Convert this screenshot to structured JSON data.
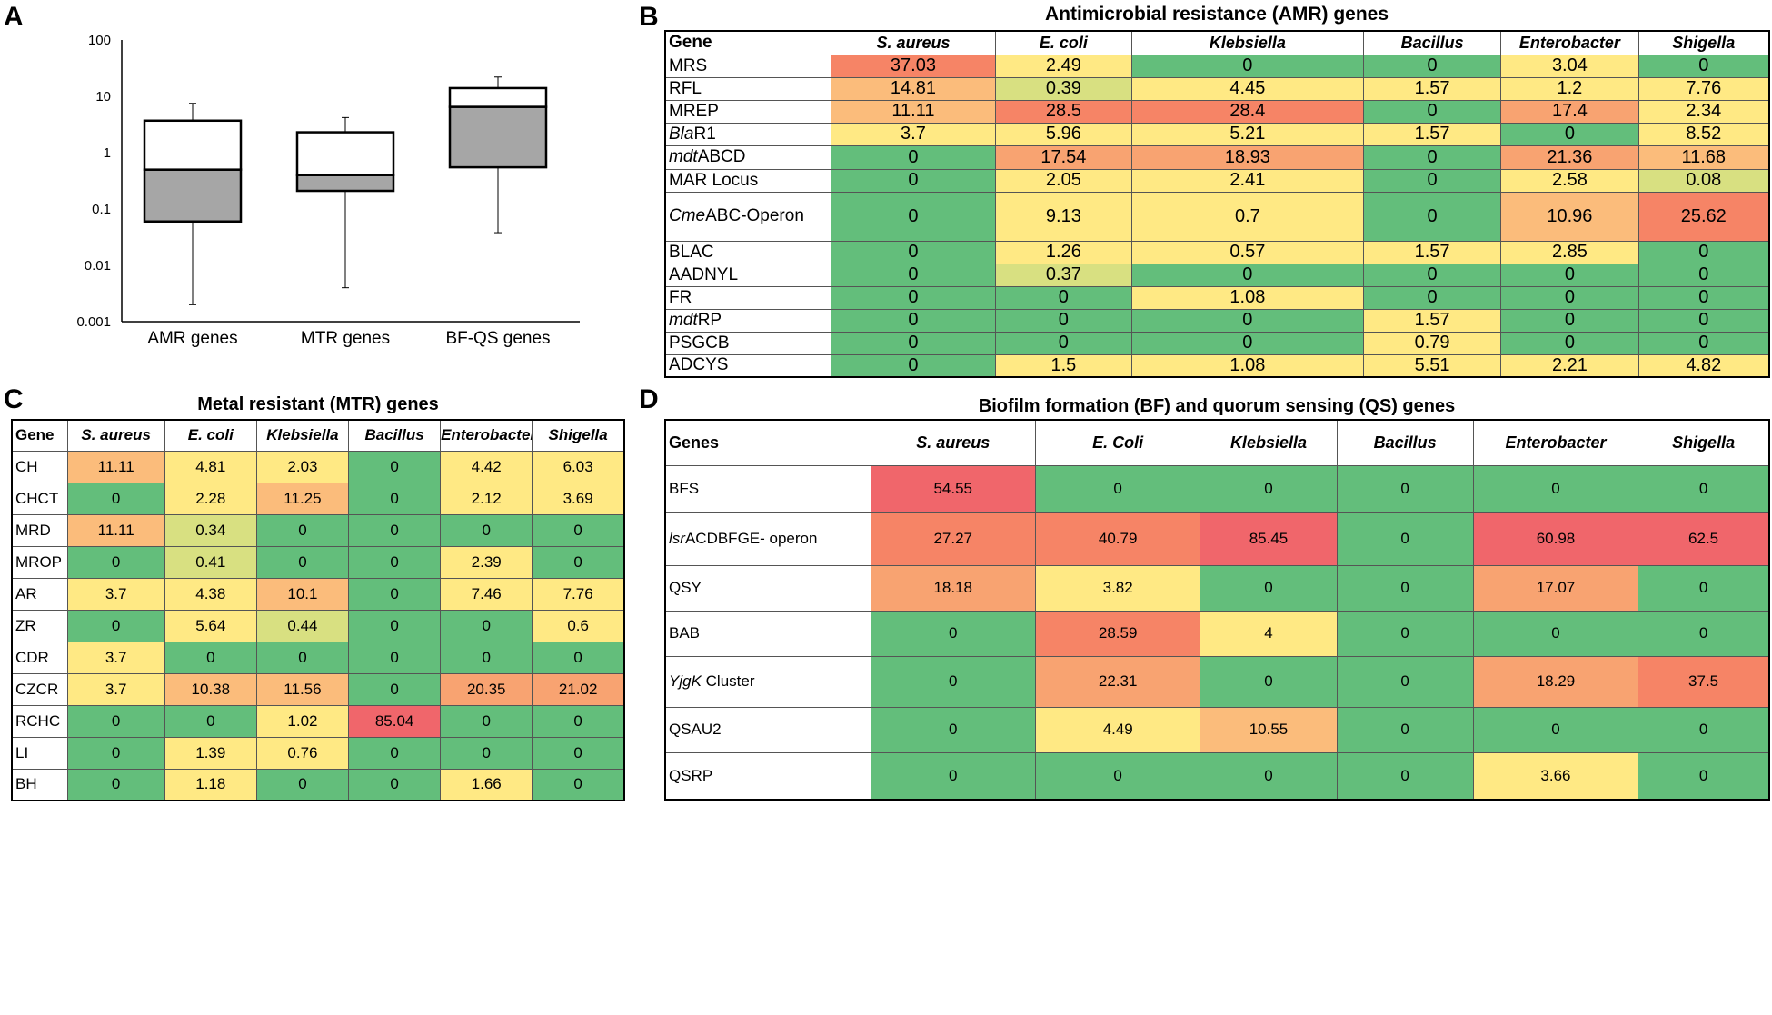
{
  "panels": {
    "a": "A",
    "b": "B",
    "c": "C",
    "d": "D"
  },
  "chart_data": [
    {
      "type": "boxplot",
      "panel": "A",
      "yscale": "log",
      "ylim": [
        0.001,
        100
      ],
      "yticks": [
        "0.001",
        "0.01",
        "0.1",
        "1",
        "10",
        "100"
      ],
      "categories": [
        "AMR genes",
        "MTR genes",
        "BF-QS genes"
      ],
      "boxes": [
        {
          "name": "AMR genes",
          "min": 0.002,
          "q1": 0.06,
          "median": 0.5,
          "q3": 3.7,
          "max": 7.5
        },
        {
          "name": "MTR genes",
          "min": 0.004,
          "q1": 0.21,
          "median": 0.4,
          "q3": 2.3,
          "max": 4.2
        },
        {
          "name": "BF-QS genes",
          "min": 0.038,
          "q1": 0.55,
          "median": 6.5,
          "q3": 14,
          "max": 22
        }
      ],
      "colors": {
        "lower_box": "#a6a6a6",
        "upper_box": "#ffffff"
      }
    },
    {
      "type": "table",
      "panel": "B",
      "title": "Antimicrobial resistance (AMR) genes",
      "gene_header": "Gene",
      "columns": [
        "S. aureus",
        "E. coli",
        "Klebsiella",
        "Bacillus",
        "Enterobacter",
        "Shigella"
      ],
      "rows": [
        {
          "gene": "MRS",
          "values": [
            "37.03",
            "2.49",
            "0",
            "0",
            "3.04",
            "0"
          ]
        },
        {
          "gene": "RFL",
          "values": [
            "14.81",
            "0.39",
            "4.45",
            "1.57",
            "1.2",
            "7.76"
          ]
        },
        {
          "gene": "MREP",
          "values": [
            "11.11",
            "28.5",
            "28.4",
            "0",
            "17.4",
            "2.34"
          ]
        },
        {
          "gene_italic": "Bla",
          "gene": "R1",
          "values": [
            "3.7",
            "5.96",
            "5.21",
            "1.57",
            "0",
            "8.52"
          ]
        },
        {
          "gene_italic": "mdt",
          "gene": "ABCD",
          "values": [
            "0",
            "17.54",
            "18.93",
            "0",
            "21.36",
            "11.68"
          ]
        },
        {
          "gene": "MAR Locus",
          "values": [
            "0",
            "2.05",
            "2.41",
            "0",
            "2.58",
            "0.08"
          ]
        },
        {
          "gene_italic": "Cme",
          "gene": "ABC-Operon",
          "values": [
            "0",
            "9.13",
            "0.7",
            "0",
            "10.96",
            "25.62"
          ]
        },
        {
          "gene": "BLAC",
          "values": [
            "0",
            "1.26",
            "0.57",
            "1.57",
            "2.85",
            "0"
          ]
        },
        {
          "gene": "AADNYL",
          "values": [
            "0",
            "0.37",
            "0",
            "0",
            "0",
            "0"
          ]
        },
        {
          "gene": "FR",
          "values": [
            "0",
            "0",
            "1.08",
            "0",
            "0",
            "0"
          ]
        },
        {
          "gene_italic": "mdt",
          "gene": "RP",
          "values": [
            "0",
            "0",
            "0",
            "1.57",
            "0",
            "0"
          ]
        },
        {
          "gene": "PSGCB",
          "values": [
            "0",
            "0",
            "0",
            "0.79",
            "0",
            "0"
          ]
        },
        {
          "gene": "ADCYS",
          "values": [
            "0",
            "1.5",
            "1.08",
            "5.51",
            "2.21",
            "4.82"
          ]
        }
      ]
    },
    {
      "type": "table",
      "panel": "C",
      "title": "Metal resistant (MTR) genes",
      "gene_header": "Gene",
      "columns": [
        "S. aureus",
        "E. coli",
        "Klebsiella",
        "Bacillus",
        "Enterobacter",
        "Shigella"
      ],
      "rows": [
        {
          "gene": "CH",
          "values": [
            "11.11",
            "4.81",
            "2.03",
            "0",
            "4.42",
            "6.03"
          ]
        },
        {
          "gene": "CHCT",
          "values": [
            "0",
            "2.28",
            "11.25",
            "0",
            "2.12",
            "3.69"
          ]
        },
        {
          "gene": "MRD",
          "values": [
            "11.11",
            "0.34",
            "0",
            "0",
            "0",
            "0"
          ]
        },
        {
          "gene": "MROP",
          "values": [
            "0",
            "0.41",
            "0",
            "0",
            "2.39",
            "0"
          ]
        },
        {
          "gene": "AR",
          "values": [
            "3.7",
            "4.38",
            "10.1",
            "0",
            "7.46",
            "7.76"
          ]
        },
        {
          "gene": "ZR",
          "values": [
            "0",
            "5.64",
            "0.44",
            "0",
            "0",
            "0.6"
          ]
        },
        {
          "gene": "CDR",
          "values": [
            "3.7",
            "0",
            "0",
            "0",
            "0",
            "0"
          ]
        },
        {
          "gene": "CZCR",
          "values": [
            "3.7",
            "10.38",
            "11.56",
            "0",
            "20.35",
            "21.02"
          ]
        },
        {
          "gene": "RCHC",
          "values": [
            "0",
            "0",
            "1.02",
            "85.04",
            "0",
            "0"
          ]
        },
        {
          "gene": "LI",
          "values": [
            "0",
            "1.39",
            "0.76",
            "0",
            "0",
            "0"
          ]
        },
        {
          "gene": "BH",
          "values": [
            "0",
            "1.18",
            "0",
            "0",
            "1.66",
            "0"
          ]
        }
      ]
    },
    {
      "type": "table",
      "panel": "D",
      "title": "Biofilm formation (BF) and quorum sensing (QS) genes",
      "gene_header": "Genes",
      "columns": [
        "S. aureus",
        "E. Coli",
        "Klebsiella",
        "Bacillus",
        "Enterobacter",
        "Shigella"
      ],
      "rows": [
        {
          "gene": "BFS",
          "values": [
            "54.55",
            "0",
            "0",
            "0",
            "0",
            "0"
          ]
        },
        {
          "gene_italic": "lsr",
          "gene": "ACDBFGE- operon",
          "values": [
            "27.27",
            "40.79",
            "85.45",
            "0",
            "60.98",
            "62.5"
          ]
        },
        {
          "gene": "QSY",
          "values": [
            "18.18",
            "3.82",
            "0",
            "0",
            "17.07",
            "0"
          ]
        },
        {
          "gene": "BAB",
          "values": [
            "0",
            "28.59",
            "4",
            "0",
            "0",
            "0"
          ]
        },
        {
          "gene_italic": "YjgK",
          "gene": " Cluster",
          "values": [
            "0",
            "22.31",
            "0",
            "0",
            "18.29",
            "37.5"
          ]
        },
        {
          "gene": "QSAU2",
          "values": [
            "0",
            "4.49",
            "10.55",
            "0",
            "0",
            "0"
          ]
        },
        {
          "gene": "QSRP",
          "values": [
            "0",
            "0",
            "0",
            "0",
            "3.66",
            "0"
          ]
        }
      ]
    }
  ],
  "colors": {
    "green": "#63be7b",
    "yellow": "#ffe984",
    "light_yellow": "#fee890",
    "pale_green": "#d8e081",
    "orange": "#fbbc7b",
    "dark_orange": "#f8a371",
    "salmon": "#f68466",
    "red": "#f0666b"
  }
}
